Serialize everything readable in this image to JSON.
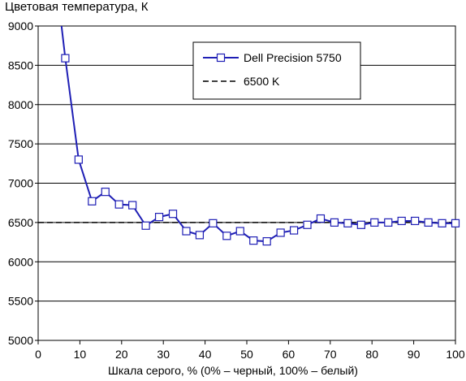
{
  "chart_data": {
    "type": "line",
    "title": "Цветовая температура, К",
    "xlabel": "Шкала серого, % (0% – черный, 100% – белый)",
    "ylabel": "",
    "xlim": [
      0,
      100
    ],
    "ylim": [
      5000,
      9000
    ],
    "x_ticks": [
      "0",
      "10",
      "20",
      "30",
      "40",
      "50",
      "60",
      "70",
      "80",
      "90",
      "100"
    ],
    "y_ticks": [
      "5000",
      "5500",
      "6000",
      "6500",
      "7000",
      "7500",
      "8000",
      "8500",
      "9000"
    ],
    "grid": "horizontal",
    "legend_position": "top-right",
    "series": [
      {
        "name": "Dell Precision 5750",
        "color": "#1f1fb5",
        "marker": "open-square",
        "x": [
          5.6,
          6.5,
          9.7,
          12.9,
          16.1,
          19.4,
          22.6,
          25.8,
          29.0,
          32.3,
          35.5,
          38.7,
          41.9,
          45.2,
          48.4,
          51.6,
          54.8,
          58.1,
          61.3,
          64.5,
          67.7,
          71.0,
          74.2,
          77.4,
          80.6,
          83.9,
          87.1,
          90.3,
          93.5,
          96.8,
          100
        ],
        "y": [
          9000,
          8590,
          7300,
          6770,
          6890,
          6730,
          6720,
          6460,
          6570,
          6610,
          6390,
          6340,
          6490,
          6330,
          6390,
          6270,
          6260,
          6370,
          6400,
          6470,
          6550,
          6500,
          6490,
          6470,
          6500,
          6500,
          6520,
          6520,
          6500,
          6490,
          6490
        ]
      },
      {
        "name": "6500 K",
        "color": "#000000",
        "style": "dashed",
        "x": [
          0,
          100
        ],
        "y": [
          6500,
          6500
        ]
      }
    ]
  }
}
